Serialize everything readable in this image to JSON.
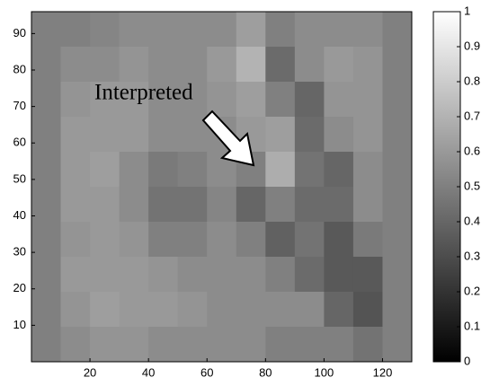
{
  "chart_data": {
    "type": "heatmap",
    "annotation": "Interpreted",
    "xlim": [
      0,
      130
    ],
    "ylim": [
      0,
      96
    ],
    "xticks": [
      20,
      40,
      60,
      80,
      100,
      120
    ],
    "yticks": [
      10,
      20,
      30,
      40,
      50,
      60,
      70,
      80,
      90
    ],
    "clim": [
      0,
      1
    ],
    "cticks": [
      0,
      0.1,
      0.2,
      0.3,
      0.4,
      0.5,
      0.6,
      0.7,
      0.8,
      0.9,
      1
    ],
    "z": [
      [
        0.5,
        0.5,
        0.52,
        0.55,
        0.55,
        0.55,
        0.55,
        0.62,
        0.5,
        0.55,
        0.55,
        0.55,
        0.5
      ],
      [
        0.5,
        0.55,
        0.55,
        0.58,
        0.55,
        0.55,
        0.6,
        0.7,
        0.42,
        0.55,
        0.6,
        0.58,
        0.5
      ],
      [
        0.5,
        0.58,
        0.6,
        0.6,
        0.55,
        0.55,
        0.58,
        0.62,
        0.5,
        0.4,
        0.58,
        0.58,
        0.5
      ],
      [
        0.5,
        0.6,
        0.6,
        0.6,
        0.55,
        0.55,
        0.55,
        0.6,
        0.62,
        0.42,
        0.55,
        0.58,
        0.5
      ],
      [
        0.5,
        0.6,
        0.62,
        0.55,
        0.48,
        0.5,
        0.55,
        0.5,
        0.68,
        0.45,
        0.4,
        0.55,
        0.5
      ],
      [
        0.5,
        0.6,
        0.6,
        0.55,
        0.45,
        0.45,
        0.52,
        0.4,
        0.5,
        0.42,
        0.42,
        0.55,
        0.5
      ],
      [
        0.5,
        0.58,
        0.6,
        0.58,
        0.5,
        0.5,
        0.55,
        0.5,
        0.38,
        0.45,
        0.35,
        0.48,
        0.5
      ],
      [
        0.5,
        0.6,
        0.6,
        0.6,
        0.58,
        0.55,
        0.55,
        0.55,
        0.5,
        0.42,
        0.35,
        0.35,
        0.5
      ],
      [
        0.5,
        0.58,
        0.62,
        0.6,
        0.6,
        0.58,
        0.55,
        0.55,
        0.55,
        0.55,
        0.4,
        0.33,
        0.5
      ],
      [
        0.5,
        0.55,
        0.58,
        0.58,
        0.55,
        0.55,
        0.55,
        0.55,
        0.5,
        0.5,
        0.5,
        0.45,
        0.5
      ]
    ]
  }
}
